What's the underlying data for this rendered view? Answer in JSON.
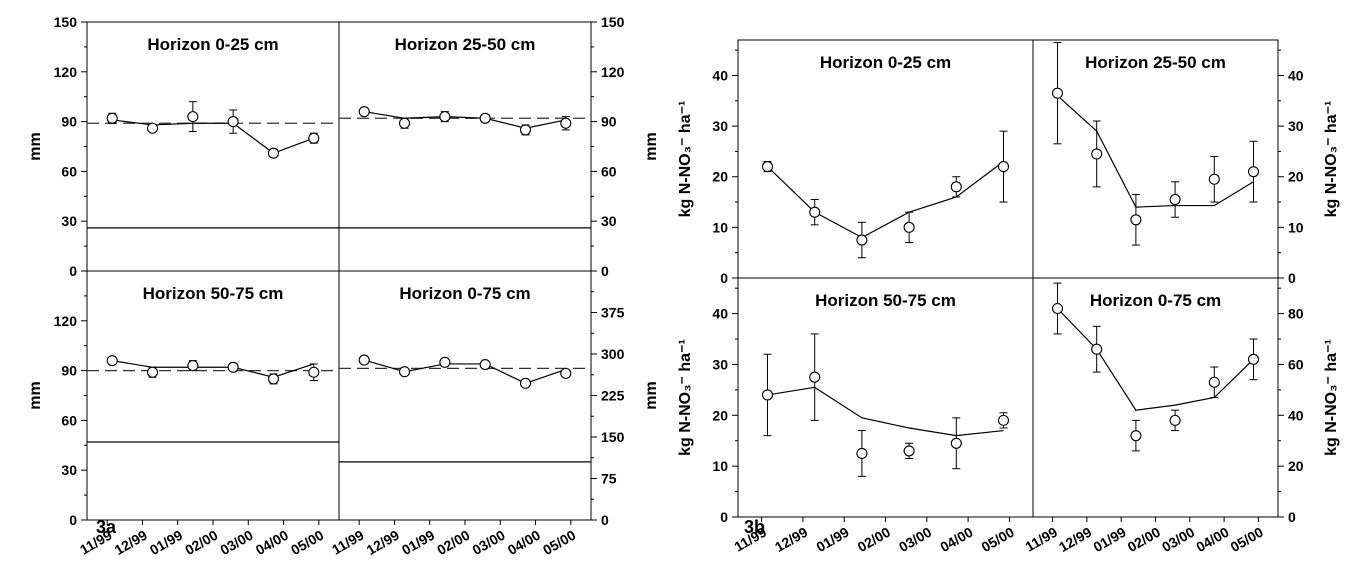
{
  "figure": {
    "a_label": "3a",
    "b_label": "3b"
  },
  "chart_data": [
    {
      "id": "3a",
      "type": "scatter",
      "x_tick_labels": [
        "11/99",
        "12/99",
        "01/99",
        "02/00",
        "03/00",
        "04/00",
        "05/00"
      ],
      "panels": [
        {
          "title": "Horizon 0-25 cm",
          "ylabel": "mm",
          "ylim": [
            0,
            150
          ],
          "yticks": [
            0,
            30,
            60,
            90,
            120,
            150
          ],
          "points": [
            {
              "y": 92,
              "err": 3
            },
            {
              "y": 86,
              "err": 2
            },
            {
              "y": 93,
              "err": 9
            },
            {
              "y": 90,
              "err": 7
            },
            {
              "y": 71,
              "err": 2
            },
            {
              "y": 80,
              "err": 3
            }
          ],
          "model_line": [
            91,
            88,
            89,
            89,
            71,
            80
          ],
          "dashed_level": 89,
          "solid_level": 26
        },
        {
          "title": "Horizon 25-50 cm",
          "ylabel": "mm",
          "ylim": [
            0,
            150
          ],
          "yticks": [
            0,
            30,
            60,
            90,
            120,
            150
          ],
          "points": [
            {
              "y": 96,
              "err": 2
            },
            {
              "y": 89,
              "err": 3
            },
            {
              "y": 93,
              "err": 3
            },
            {
              "y": 92,
              "err": 2
            },
            {
              "y": 85,
              "err": 3
            },
            {
              "y": 89,
              "err": 4
            }
          ],
          "model_line": [
            96,
            92,
            93,
            92,
            86,
            91
          ],
          "dashed_level": 92,
          "solid_level": 26
        },
        {
          "title": "Horizon 50-75 cm",
          "ylabel": "mm",
          "ylim": [
            0,
            150
          ],
          "yticks": [
            0,
            30,
            60,
            90,
            120
          ],
          "points": [
            {
              "y": 96,
              "err": 2
            },
            {
              "y": 89,
              "err": 3
            },
            {
              "y": 93,
              "err": 3
            },
            {
              "y": 92,
              "err": 2
            },
            {
              "y": 85,
              "err": 3
            },
            {
              "y": 89,
              "err": 5
            }
          ],
          "model_line": [
            96,
            92,
            92,
            92,
            86,
            94
          ],
          "dashed_level": 90,
          "solid_level": 47
        },
        {
          "title": "Horizon 0-75 cm",
          "ylabel": "mm",
          "ylim": [
            0,
            450
          ],
          "yticks": [
            0,
            75,
            150,
            225,
            300,
            375
          ],
          "points": [
            {
              "y": 289,
              "err": 4
            },
            {
              "y": 268,
              "err": 3
            },
            {
              "y": 285,
              "err": 7
            },
            {
              "y": 281,
              "err": 5
            },
            {
              "y": 247,
              "err": 3
            },
            {
              "y": 265,
              "err": 6
            }
          ],
          "model_line": [
            289,
            268,
            282,
            282,
            247,
            272
          ],
          "dashed_level": 274,
          "solid_level": 105
        }
      ]
    },
    {
      "id": "3b",
      "type": "scatter",
      "x_tick_labels": [
        "11/99",
        "12/99",
        "01/99",
        "02/00",
        "03/00",
        "04/00",
        "05/00"
      ],
      "panels": [
        {
          "title": "Horizon 0-25 cm",
          "ylabel": "kg N-NO₃⁻ ha⁻¹",
          "ylim": [
            0,
            47
          ],
          "yticks": [
            0,
            10,
            20,
            30,
            40
          ],
          "points": [
            {
              "y": 22,
              "err": 1
            },
            {
              "y": 13,
              "err": 2.5
            },
            {
              "y": 7.5,
              "err": 3.5
            },
            {
              "y": 10,
              "err": 3
            },
            {
              "y": 18,
              "err": 2
            },
            {
              "y": 22,
              "err": 7
            }
          ],
          "model_line": [
            22,
            13,
            8,
            13,
            16,
            23
          ]
        },
        {
          "title": "Horizon 25-50 cm",
          "ylabel": "kg N-NO₃⁻ ha⁻¹",
          "ylim": [
            0,
            47
          ],
          "yticks": [
            0,
            10,
            20,
            30,
            40
          ],
          "points": [
            {
              "y": 36.5,
              "err": 10
            },
            {
              "y": 24.5,
              "err": 6.5
            },
            {
              "y": 11.5,
              "err": 5
            },
            {
              "y": 15.5,
              "err": 3.5
            },
            {
              "y": 19.5,
              "err": 4.5
            },
            {
              "y": 21,
              "err": 6
            }
          ],
          "model_line": [
            36,
            29,
            14,
            14.3,
            14.3,
            19
          ]
        },
        {
          "title": "Horizon 50-75 cm",
          "ylabel": "kg N-NO₃⁻ ha⁻¹",
          "ylim": [
            0,
            47
          ],
          "yticks": [
            0,
            10,
            20,
            30,
            40
          ],
          "points": [
            {
              "y": 24,
              "err": 8
            },
            {
              "y": 27.5,
              "err": 8.5
            },
            {
              "y": 12.5,
              "err": 4.5
            },
            {
              "y": 13,
              "err": 1.5
            },
            {
              "y": 14.5,
              "err": 5
            },
            {
              "y": 19,
              "err": 1.5
            }
          ],
          "model_line": [
            24,
            25.5,
            19.5,
            17.5,
            16,
            17
          ]
        },
        {
          "title": "Horizon 0-75 cm",
          "ylabel": "kg N-NO₃⁻ ha⁻¹",
          "ylim": [
            0,
            94
          ],
          "yticks": [
            0,
            20,
            40,
            60,
            80
          ],
          "points": [
            {
              "y": 82,
              "err": 10
            },
            {
              "y": 66,
              "err": 9
            },
            {
              "y": 32,
              "err": 6
            },
            {
              "y": 38,
              "err": 4
            },
            {
              "y": 53,
              "err": 6
            },
            {
              "y": 62,
              "err": 8
            }
          ],
          "model_line": [
            82,
            66,
            42,
            44,
            47,
            62
          ]
        }
      ]
    }
  ]
}
